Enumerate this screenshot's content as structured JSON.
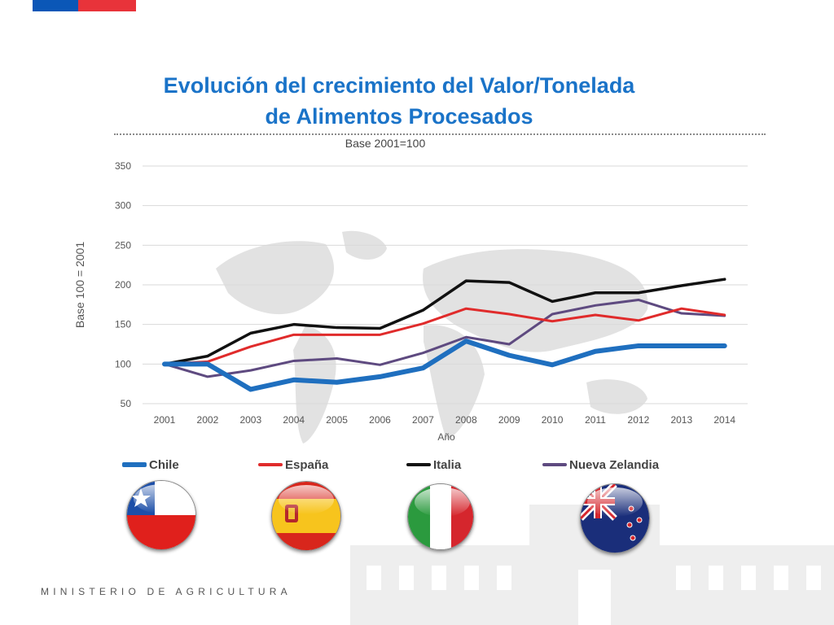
{
  "header": {
    "title_line1": "Evolución del crecimiento del Valor/Tonelada",
    "title_line2": "de Alimentos Procesados"
  },
  "footer": {
    "text": "MINISTERIO DE AGRICULTURA"
  },
  "colors": {
    "brand_blue": "#0b57b7",
    "brand_red": "#e8333a",
    "title": "#1a73c8"
  },
  "chart_data": {
    "type": "line",
    "title": "Base 2001=100",
    "xlabel": "Año",
    "ylabel": "Base 100 = 2001",
    "ylim": [
      50,
      350
    ],
    "yticks": [
      50,
      100,
      150,
      200,
      250,
      300,
      350
    ],
    "grid": true,
    "legend_position": "bottom",
    "categories": [
      "2001",
      "2002",
      "2003",
      "2004",
      "2005",
      "2006",
      "2007",
      "2008",
      "2009",
      "2010",
      "2011",
      "2012",
      "2013",
      "2014"
    ],
    "series": [
      {
        "name": "Chile",
        "color": "#1f6fbf",
        "values": [
          100,
          100,
          68,
          80,
          77,
          84,
          95,
          129,
          111,
          99,
          116,
          123,
          123,
          123
        ]
      },
      {
        "name": "España",
        "color": "#e02b2b",
        "values": [
          100,
          103,
          122,
          137,
          137,
          137,
          151,
          170,
          163,
          154,
          162,
          155,
          170,
          162
        ]
      },
      {
        "name": "Italia",
        "color": "#111111",
        "values": [
          100,
          110,
          139,
          150,
          146,
          145,
          168,
          205,
          203,
          179,
          190,
          190,
          199,
          207
        ]
      },
      {
        "name": "Nueva Zelandia",
        "color": "#5e4a80",
        "values": [
          100,
          84,
          92,
          104,
          107,
          99,
          114,
          134,
          125,
          163,
          174,
          181,
          164,
          161
        ]
      }
    ]
  }
}
